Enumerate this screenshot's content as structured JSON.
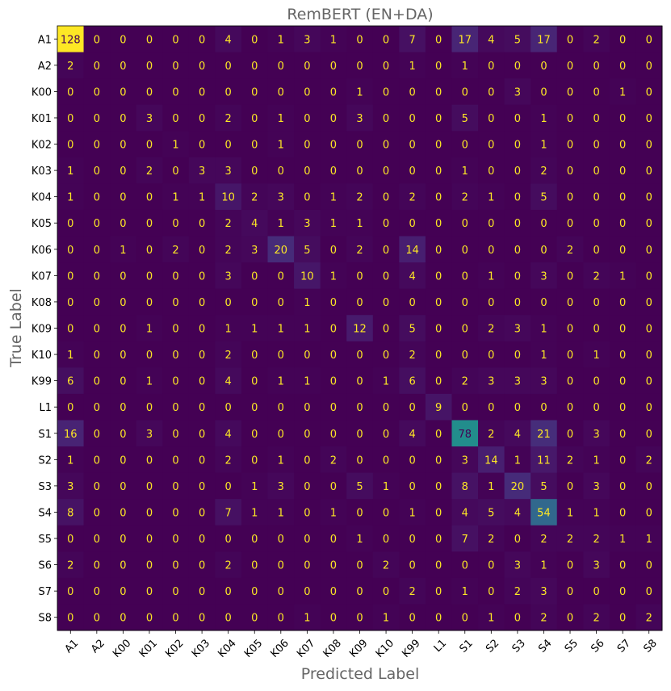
{
  "chart_data": {
    "type": "heatmap",
    "title": "RemBERT (EN+DA)",
    "xlabel": "Predicted Label",
    "ylabel": "True Label",
    "labels": [
      "A1",
      "A2",
      "K00",
      "K01",
      "K02",
      "K03",
      "K04",
      "K05",
      "K06",
      "K07",
      "K08",
      "K09",
      "K10",
      "K99",
      "L1",
      "S1",
      "S2",
      "S3",
      "S4",
      "S5",
      "S6",
      "S7",
      "S8"
    ],
    "matrix": [
      [
        128,
        0,
        0,
        0,
        0,
        0,
        4,
        0,
        1,
        3,
        1,
        0,
        0,
        7,
        0,
        17,
        4,
        5,
        17,
        0,
        2,
        0,
        0
      ],
      [
        2,
        0,
        0,
        0,
        0,
        0,
        0,
        0,
        0,
        0,
        0,
        0,
        0,
        1,
        0,
        1,
        0,
        0,
        0,
        0,
        0,
        0,
        0
      ],
      [
        0,
        0,
        0,
        0,
        0,
        0,
        0,
        0,
        0,
        0,
        0,
        1,
        0,
        0,
        0,
        0,
        0,
        3,
        0,
        0,
        0,
        1,
        0
      ],
      [
        0,
        0,
        0,
        3,
        0,
        0,
        2,
        0,
        1,
        0,
        0,
        3,
        0,
        0,
        0,
        5,
        0,
        0,
        1,
        0,
        0,
        0,
        0
      ],
      [
        0,
        0,
        0,
        0,
        1,
        0,
        0,
        0,
        1,
        0,
        0,
        0,
        0,
        0,
        0,
        0,
        0,
        0,
        1,
        0,
        0,
        0,
        0
      ],
      [
        1,
        0,
        0,
        2,
        0,
        3,
        3,
        0,
        0,
        0,
        0,
        0,
        0,
        0,
        0,
        1,
        0,
        0,
        2,
        0,
        0,
        0,
        0
      ],
      [
        1,
        0,
        0,
        0,
        1,
        1,
        10,
        2,
        3,
        0,
        1,
        2,
        0,
        2,
        0,
        2,
        1,
        0,
        5,
        0,
        0,
        0,
        0
      ],
      [
        0,
        0,
        0,
        0,
        0,
        0,
        2,
        4,
        1,
        3,
        1,
        1,
        0,
        0,
        0,
        0,
        0,
        0,
        0,
        0,
        0,
        0,
        0
      ],
      [
        0,
        0,
        1,
        0,
        2,
        0,
        2,
        3,
        20,
        5,
        0,
        2,
        0,
        14,
        0,
        0,
        0,
        0,
        0,
        2,
        0,
        0,
        0
      ],
      [
        0,
        0,
        0,
        0,
        0,
        0,
        3,
        0,
        0,
        10,
        1,
        0,
        0,
        4,
        0,
        0,
        1,
        0,
        3,
        0,
        2,
        1,
        0
      ],
      [
        0,
        0,
        0,
        0,
        0,
        0,
        0,
        0,
        0,
        1,
        0,
        0,
        0,
        0,
        0,
        0,
        0,
        0,
        0,
        0,
        0,
        0,
        0
      ],
      [
        0,
        0,
        0,
        1,
        0,
        0,
        1,
        1,
        1,
        1,
        0,
        12,
        0,
        5,
        0,
        0,
        2,
        3,
        1,
        0,
        0,
        0,
        0
      ],
      [
        1,
        0,
        0,
        0,
        0,
        0,
        2,
        0,
        0,
        0,
        0,
        0,
        0,
        2,
        0,
        0,
        0,
        0,
        1,
        0,
        1,
        0,
        0
      ],
      [
        6,
        0,
        0,
        1,
        0,
        0,
        4,
        0,
        1,
        1,
        0,
        0,
        1,
        6,
        0,
        2,
        3,
        3,
        3,
        0,
        0,
        0,
        0
      ],
      [
        0,
        0,
        0,
        0,
        0,
        0,
        0,
        0,
        0,
        0,
        0,
        0,
        0,
        0,
        9,
        0,
        0,
        0,
        0,
        0,
        0,
        0,
        0
      ],
      [
        16,
        0,
        0,
        3,
        0,
        0,
        4,
        0,
        0,
        0,
        0,
        0,
        0,
        4,
        0,
        78,
        2,
        4,
        21,
        0,
        3,
        0,
        0
      ],
      [
        1,
        0,
        0,
        0,
        0,
        0,
        2,
        0,
        1,
        0,
        2,
        0,
        0,
        0,
        0,
        3,
        14,
        1,
        11,
        2,
        1,
        0,
        2
      ],
      [
        3,
        0,
        0,
        0,
        0,
        0,
        0,
        1,
        3,
        0,
        0,
        5,
        1,
        0,
        0,
        8,
        1,
        20,
        5,
        0,
        3,
        0,
        0
      ],
      [
        8,
        0,
        0,
        0,
        0,
        0,
        7,
        1,
        1,
        0,
        1,
        0,
        0,
        1,
        0,
        4,
        5,
        4,
        54,
        1,
        1,
        0,
        0
      ],
      [
        0,
        0,
        0,
        0,
        0,
        0,
        0,
        0,
        0,
        0,
        0,
        1,
        0,
        0,
        0,
        7,
        2,
        0,
        2,
        2,
        2,
        1,
        1
      ],
      [
        2,
        0,
        0,
        0,
        0,
        0,
        2,
        0,
        0,
        0,
        0,
        0,
        2,
        0,
        0,
        0,
        0,
        3,
        1,
        0,
        3,
        0,
        0
      ],
      [
        0,
        0,
        0,
        0,
        0,
        0,
        0,
        0,
        0,
        0,
        0,
        0,
        0,
        2,
        0,
        1,
        0,
        2,
        3,
        0,
        0,
        0,
        0
      ],
      [
        0,
        0,
        0,
        0,
        0,
        0,
        0,
        0,
        0,
        1,
        0,
        0,
        1,
        0,
        0,
        0,
        1,
        0,
        2,
        0,
        2,
        0,
        2
      ]
    ],
    "colormap": "viridis",
    "vmin": 0,
    "vmax": 128,
    "text_color_low": "#fde725",
    "text_color_high": "#440154"
  }
}
